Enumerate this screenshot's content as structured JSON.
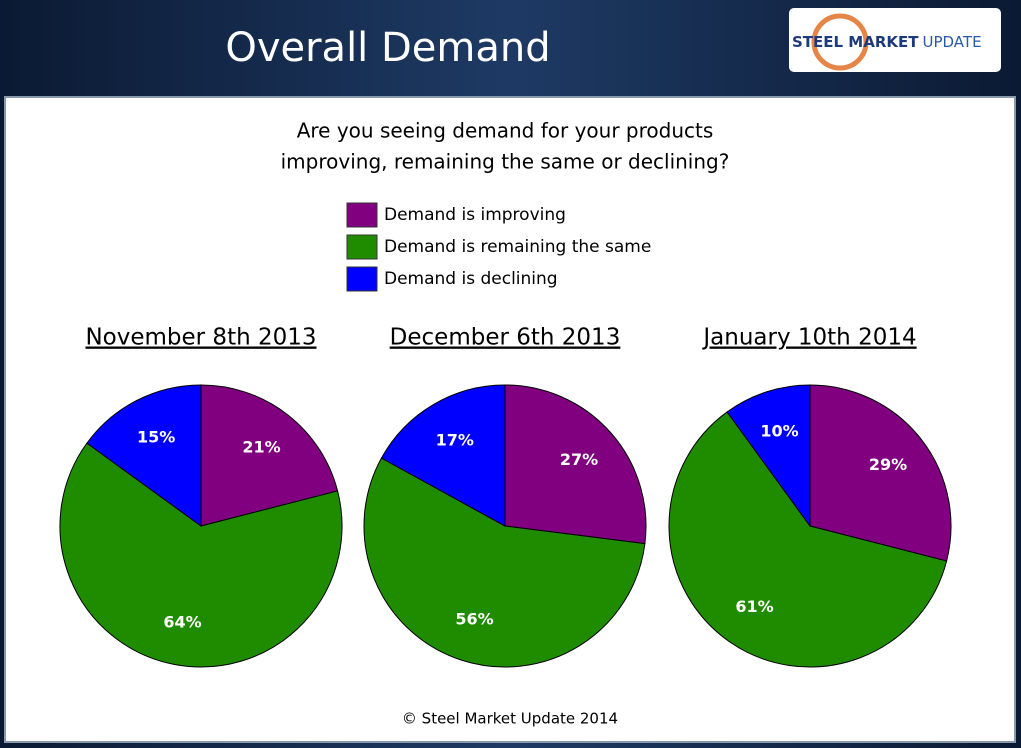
{
  "title": "Overall Demand",
  "logo": {
    "bold": "STEEL MARKET",
    "light": "UPDATE"
  },
  "question": [
    "Are you seeing demand for your products",
    "improving, remaining the same or declining?"
  ],
  "legend": [
    {
      "label": "Demand is improving",
      "color": "#800080"
    },
    {
      "label": "Demand is remaining the same",
      "color": "#1f8c00"
    },
    {
      "label": "Demand is declining",
      "color": "#0000ff"
    }
  ],
  "footer": "© Steel Market Update 2014",
  "chart_data": [
    {
      "type": "pie",
      "title": "November 8th 2013",
      "values": [
        21,
        64,
        15
      ],
      "value_labels": [
        "21%",
        "64%",
        "15%"
      ]
    },
    {
      "type": "pie",
      "title": "December 6th 2013",
      "values": [
        27,
        56,
        17
      ],
      "value_labels": [
        "27%",
        "56%",
        "17%"
      ]
    },
    {
      "type": "pie",
      "title": "January 10th 2014",
      "values": [
        29,
        61,
        10
      ],
      "value_labels": [
        "29%",
        "61%",
        "10%"
      ]
    }
  ]
}
